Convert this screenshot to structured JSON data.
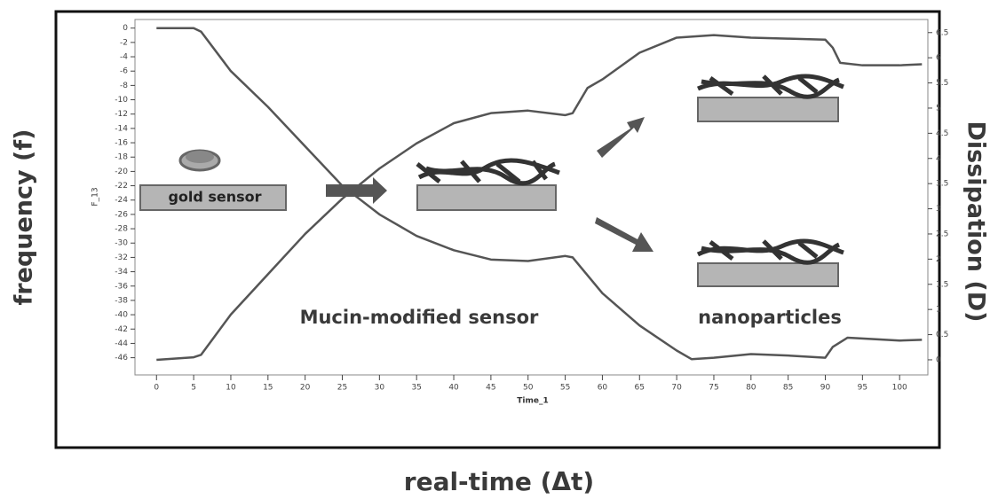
{
  "chart_data": {
    "type": "line",
    "y_axis_label": "frequency (f)",
    "y2_axis_label": "Dissipation (D)",
    "x_axis_label": "real-time (Δt)",
    "inner_x_label": "Time_1",
    "inner_y_label": "F_13",
    "annotations": [
      "gold sensor",
      "Mucin-modified sensor",
      "nanoparticles"
    ],
    "xlim": [
      -2.9,
      103.8
    ],
    "xticks": [
      0,
      5,
      10,
      15,
      20,
      25,
      30,
      35,
      40,
      45,
      50,
      55,
      60,
      65,
      70,
      75,
      80,
      85,
      90,
      95,
      100
    ],
    "ylim": [
      -48.4,
      1.2
    ],
    "yticks": [
      0,
      -2,
      -4,
      -6,
      -8,
      -10,
      -12,
      -14,
      -16,
      -18,
      -20,
      -22,
      -24,
      -26,
      -28,
      -30,
      -32,
      -34,
      -36,
      -38,
      -40,
      -42,
      -44,
      -46
    ],
    "y2lim": [
      -0.3,
      6.76
    ],
    "y2ticks": [
      0,
      0.5,
      1,
      1.5,
      2,
      2.5,
      3,
      3.5,
      4,
      4.5,
      5,
      5.5,
      6,
      6.5
    ],
    "series": [
      {
        "color": "#555555",
        "x": [
          0,
          5,
          6,
          10,
          15,
          20,
          25,
          30,
          35,
          40,
          45,
          50,
          55,
          56,
          60,
          65,
          70,
          72,
          75,
          80,
          85,
          90,
          91,
          93,
          100,
          103
        ],
        "values": [
          0,
          0,
          -0.5,
          -6,
          -11,
          -16.5,
          -22,
          -26,
          -29,
          -31,
          -32.3,
          -32.5,
          -31.8,
          -32,
          -37,
          -41.5,
          -45,
          -46.2,
          -46,
          -45.5,
          -45.7,
          -46,
          -44.5,
          -43.2,
          -43.6,
          -43.5
        ]
      },
      {
        "color": "#555555",
        "axis": "y2",
        "x": [
          0,
          5,
          6,
          10,
          15,
          20,
          25,
          30,
          35,
          40,
          45,
          50,
          55,
          56,
          58,
          60,
          65,
          70,
          75,
          80,
          85,
          90,
          91,
          92,
          95,
          100,
          103
        ],
        "values": [
          0,
          0.05,
          0.1,
          0.9,
          1.7,
          2.5,
          3.2,
          3.8,
          4.3,
          4.7,
          4.9,
          4.95,
          4.86,
          4.9,
          5.4,
          5.57,
          6.1,
          6.4,
          6.45,
          6.4,
          6.38,
          6.36,
          6.2,
          5.9,
          5.85,
          5.85,
          5.87
        ]
      }
    ]
  }
}
